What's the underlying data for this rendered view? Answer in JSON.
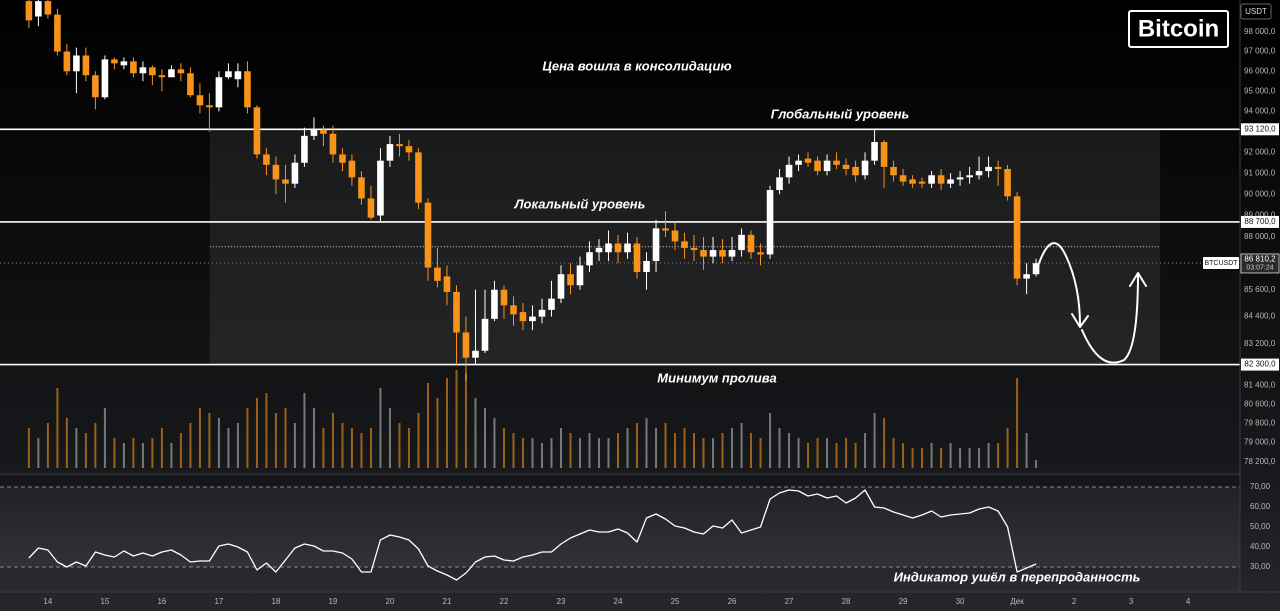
{
  "chart_data": {
    "type": "candlestick",
    "badge": "Bitcoin",
    "currency": "USDT",
    "annotations": [
      "Цена вошла в консолидацию",
      "Глобальный уровень",
      "Локальный уровень",
      "Минимум пролива",
      "Индикатор ушёл в перепроданность"
    ],
    "x": [
      13.667,
      13.833,
      14,
      14.167,
      14.333,
      14.5,
      14.667,
      14.833,
      15,
      15.167,
      15.333,
      15.5,
      15.667,
      15.833,
      16,
      16.167,
      16.333,
      16.5,
      16.667,
      16.833,
      17,
      17.167,
      17.333,
      17.5,
      17.667,
      17.833,
      18,
      18.167,
      18.333,
      18.5,
      18.667,
      18.833,
      19,
      19.167,
      19.333,
      19.5,
      19.667,
      19.833,
      20,
      20.167,
      20.333,
      20.5,
      20.667,
      20.833,
      21,
      21.167,
      21.333,
      21.5,
      21.667,
      21.833,
      22,
      22.167,
      22.333,
      22.5,
      22.667,
      22.833,
      23,
      23.167,
      23.333,
      23.5,
      23.667,
      23.833,
      24,
      24.167,
      24.333,
      24.5,
      24.667,
      24.833,
      25,
      25.167,
      25.333,
      25.5,
      25.667,
      25.833,
      26,
      26.167,
      26.333,
      26.5,
      26.667,
      26.833,
      27,
      27.167,
      27.333,
      27.5,
      27.667,
      27.833,
      28,
      28.167,
      28.333,
      28.5,
      28.667,
      28.833,
      29,
      29.167,
      29.333,
      29.5,
      29.667,
      29.833,
      30,
      30.167,
      30.333,
      30.5,
      30.667,
      30.833,
      31,
      31.167,
      31.333
    ],
    "open": [
      99600,
      98800,
      99600,
      98900,
      97000,
      96000,
      96800,
      95800,
      94700,
      96600,
      96300,
      96500,
      95900,
      96200,
      95800,
      95700,
      96100,
      95900,
      94800,
      94300,
      94200,
      95700,
      95600,
      96000,
      94200,
      91900,
      91400,
      90700,
      90500,
      91500,
      92800,
      93100,
      92900,
      91900,
      91600,
      90800,
      89800,
      89000,
      91600,
      92400,
      92300,
      92000,
      89600,
      86600,
      86200,
      85500,
      83700,
      82600,
      82900,
      84300,
      85600,
      84900,
      84600,
      84200,
      84400,
      84700,
      85200,
      86300,
      85800,
      86700,
      87300,
      87300,
      87700,
      87300,
      87700,
      86400,
      86900,
      88400,
      88300,
      87800,
      87500,
      87400,
      87100,
      87400,
      87100,
      87400,
      88100,
      87300,
      87200,
      90200,
      90800,
      91400,
      91700,
      91600,
      91100,
      91600,
      91400,
      91300,
      90900,
      91600,
      92500,
      91300,
      90900,
      90700,
      90600,
      90500,
      90900,
      90500,
      90700,
      90800,
      90900,
      91100,
      91300,
      91200,
      89900,
      86100,
      86300
    ],
    "high": [
      99700,
      99700,
      99700,
      99200,
      97400,
      97200,
      97200,
      96000,
      96800,
      96700,
      96700,
      96700,
      96500,
      96300,
      96100,
      96300,
      96400,
      96200,
      95400,
      94900,
      96000,
      96400,
      96400,
      96500,
      94300,
      92200,
      91800,
      91400,
      91900,
      93200,
      93700,
      93300,
      93300,
      92200,
      91900,
      91100,
      90400,
      92200,
      92800,
      92900,
      92600,
      92200,
      89800,
      87500,
      86700,
      85800,
      84400,
      85600,
      85600,
      86000,
      85800,
      85300,
      85000,
      84900,
      85200,
      86000,
      86700,
      86800,
      87100,
      87800,
      87900,
      88300,
      88100,
      88200,
      88000,
      87300,
      88800,
      89200,
      88700,
      88200,
      88100,
      88000,
      88000,
      87900,
      88000,
      88400,
      88300,
      87700,
      90400,
      91200,
      91800,
      91900,
      92000,
      91800,
      91900,
      92000,
      91700,
      91600,
      92000,
      93100,
      92600,
      91600,
      91200,
      90900,
      90800,
      91100,
      91200,
      91000,
      91100,
      91300,
      91800,
      91800,
      91600,
      91400,
      90100,
      86800,
      87000
    ],
    "low": [
      98200,
      98300,
      98700,
      96800,
      95800,
      94900,
      95500,
      94100,
      94600,
      96100,
      96100,
      95700,
      95500,
      95300,
      95000,
      95700,
      95500,
      94700,
      93900,
      93000,
      94000,
      95600,
      95200,
      93900,
      91700,
      90900,
      90000,
      89600,
      90300,
      91300,
      92600,
      92300,
      91500,
      91100,
      90400,
      89500,
      88800,
      88700,
      91300,
      91800,
      91600,
      89300,
      86000,
      85700,
      84900,
      82300,
      81600,
      82300,
      82800,
      84200,
      84300,
      84000,
      83800,
      83800,
      84100,
      84400,
      85000,
      85400,
      85600,
      86400,
      86900,
      86900,
      86800,
      87000,
      86100,
      85600,
      86400,
      88000,
      87400,
      87000,
      86900,
      86500,
      86800,
      86800,
      86900,
      87100,
      87000,
      86700,
      87000,
      90000,
      90500,
      91100,
      91300,
      90900,
      90900,
      91200,
      90900,
      90600,
      90700,
      91400,
      90300,
      90600,
      90400,
      90300,
      90300,
      90300,
      90200,
      90300,
      90400,
      90500,
      90700,
      90800,
      90400,
      89700,
      85800,
      85400,
      86200
    ],
    "close": [
      98600,
      99600,
      98900,
      97000,
      96000,
      96800,
      95800,
      94700,
      96600,
      96400,
      96500,
      95900,
      96200,
      95800,
      95700,
      96100,
      95900,
      94800,
      94300,
      94200,
      95700,
      96000,
      96000,
      94200,
      91900,
      91400,
      90700,
      90500,
      91500,
      92800,
      93100,
      92900,
      91900,
      91500,
      90800,
      89800,
      88900,
      91600,
      92400,
      92300,
      92000,
      89600,
      86600,
      86000,
      85500,
      83700,
      82600,
      82900,
      84300,
      85600,
      84900,
      84500,
      84200,
      84400,
      84700,
      85200,
      86300,
      85800,
      86700,
      87300,
      87500,
      87700,
      87300,
      87700,
      86400,
      86900,
      88400,
      88300,
      87800,
      87500,
      87400,
      87100,
      87400,
      87100,
      87400,
      88100,
      87300,
      87200,
      90200,
      90800,
      91400,
      91600,
      91500,
      91100,
      91600,
      91400,
      91200,
      90900,
      91600,
      92500,
      91300,
      90900,
      90600,
      90500,
      90500,
      90900,
      90500,
      90700,
      90800,
      90900,
      91100,
      91300,
      91200,
      89900,
      86100,
      86300,
      86800
    ],
    "volume": [
      40,
      30,
      45,
      80,
      50,
      40,
      35,
      45,
      60,
      30,
      25,
      30,
      25,
      30,
      40,
      25,
      35,
      45,
      60,
      55,
      50,
      40,
      45,
      60,
      70,
      75,
      55,
      60,
      45,
      75,
      60,
      40,
      55,
      45,
      40,
      35,
      40,
      80,
      60,
      45,
      40,
      55,
      85,
      70,
      90,
      98,
      95,
      70,
      60,
      50,
      40,
      35,
      30,
      30,
      25,
      30,
      40,
      35,
      30,
      35,
      30,
      30,
      35,
      40,
      45,
      50,
      40,
      45,
      35,
      40,
      35,
      30,
      30,
      35,
      40,
      45,
      35,
      30,
      55,
      40,
      35,
      30,
      25,
      30,
      30,
      25,
      30,
      25,
      35,
      55,
      50,
      30,
      25,
      20,
      20,
      25,
      20,
      25,
      20,
      20,
      20,
      25,
      25,
      40,
      90,
      35,
      8
    ],
    "up_color": "#ffffff",
    "down_color": "#f7931a",
    "log": true,
    "xlim": [
      13.16,
      34.91
    ],
    "xticks": [
      14,
      15,
      16,
      17,
      18,
      19,
      20,
      21,
      22,
      23,
      24,
      25,
      26,
      27,
      28,
      29,
      30,
      {
        "value": 31,
        "label": "Дек"
      },
      {
        "value": 32,
        "label": "2"
      },
      {
        "value": 33,
        "label": "3"
      },
      {
        "value": 34,
        "label": "4"
      }
    ],
    "ylim": [
      77870,
      99660
    ],
    "yticks": [
      {
        "value": 98000,
        "label": "98 000,0"
      },
      {
        "value": 97000,
        "label": "97 000,0"
      },
      {
        "value": 96000,
        "label": "96 000,0"
      },
      {
        "value": 95000,
        "label": "95 000,0"
      },
      {
        "value": 94000,
        "label": "94 000,0"
      },
      {
        "value": 92000,
        "label": "92 000,0"
      },
      {
        "value": 91000,
        "label": "91 000,0"
      },
      {
        "value": 90000,
        "label": "90 000,0"
      },
      {
        "value": 89000,
        "label": "89 000,0"
      },
      {
        "value": 88000,
        "label": "88 000,0"
      },
      {
        "value": 85600,
        "label": "85 600,0"
      },
      {
        "value": 84400,
        "label": "84 400,0"
      },
      {
        "value": 83200,
        "label": "83 200,0"
      },
      {
        "value": 81400,
        "label": "81 400,0"
      },
      {
        "value": 80600,
        "label": "80 600,0"
      },
      {
        "value": 79800,
        "label": "79 800,0"
      },
      {
        "value": 79000,
        "label": "79 000,0"
      },
      {
        "value": 78200,
        "label": "78 200,0"
      }
    ],
    "levels": [
      {
        "value": 93120,
        "label": "93 120,0"
      },
      {
        "value": 88700,
        "label": "88 700,0"
      },
      {
        "value": 82300,
        "label": "82 300,0"
      }
    ],
    "zone": {
      "x": [
        16.84,
        33.51
      ],
      "y": [
        82300,
        93120
      ]
    },
    "dotted_level": 87550,
    "last_price": {
      "symbol": "BTCUSDT",
      "value": 86810.2,
      "label": "86 810,2",
      "timer": "03:07:24"
    },
    "rsi": {
      "color": "#ffffff",
      "values": [
        34.5,
        39.5,
        38.5,
        32.5,
        30,
        32.5,
        30.5,
        37.5,
        36,
        35,
        38,
        35.5,
        37,
        35.5,
        37.5,
        38.5,
        36,
        32.5,
        33,
        33,
        40.5,
        41.5,
        40,
        37.5,
        28.5,
        32,
        27.5,
        33.5,
        39.5,
        41.5,
        40.5,
        38,
        38,
        37,
        34,
        27.5,
        27.5,
        43.5,
        46,
        45,
        43.5,
        39,
        30.5,
        28,
        26,
        23.5,
        27,
        32.5,
        35,
        35.5,
        33.5,
        33,
        35,
        36,
        37.5,
        37.5,
        41.5,
        44.5,
        46.5,
        48.5,
        47.5,
        47.5,
        49,
        47,
        42.5,
        54.5,
        56.5,
        54,
        50.5,
        49.5,
        47.5,
        46.5,
        50.5,
        49.5,
        53.5,
        47,
        48.5,
        50,
        64,
        67,
        68.5,
        68,
        65.5,
        66.5,
        64.5,
        65.5,
        62,
        64.5,
        68.5,
        60,
        59.5,
        57.5,
        56,
        54.5,
        56,
        58,
        55,
        56,
        56.5,
        57,
        59,
        60,
        58,
        50,
        27.5,
        29.5,
        31.5
      ],
      "ylim": [
        19,
        75
      ],
      "yticks": [
        {
          "value": 70,
          "label": "70,00"
        },
        {
          "value": 60,
          "label": "60,00"
        },
        {
          "value": 50,
          "label": "50,00"
        },
        {
          "value": 40,
          "label": "40,00"
        },
        {
          "value": 30,
          "label": "30,00"
        }
      ],
      "bands": [
        30,
        70
      ]
    }
  }
}
